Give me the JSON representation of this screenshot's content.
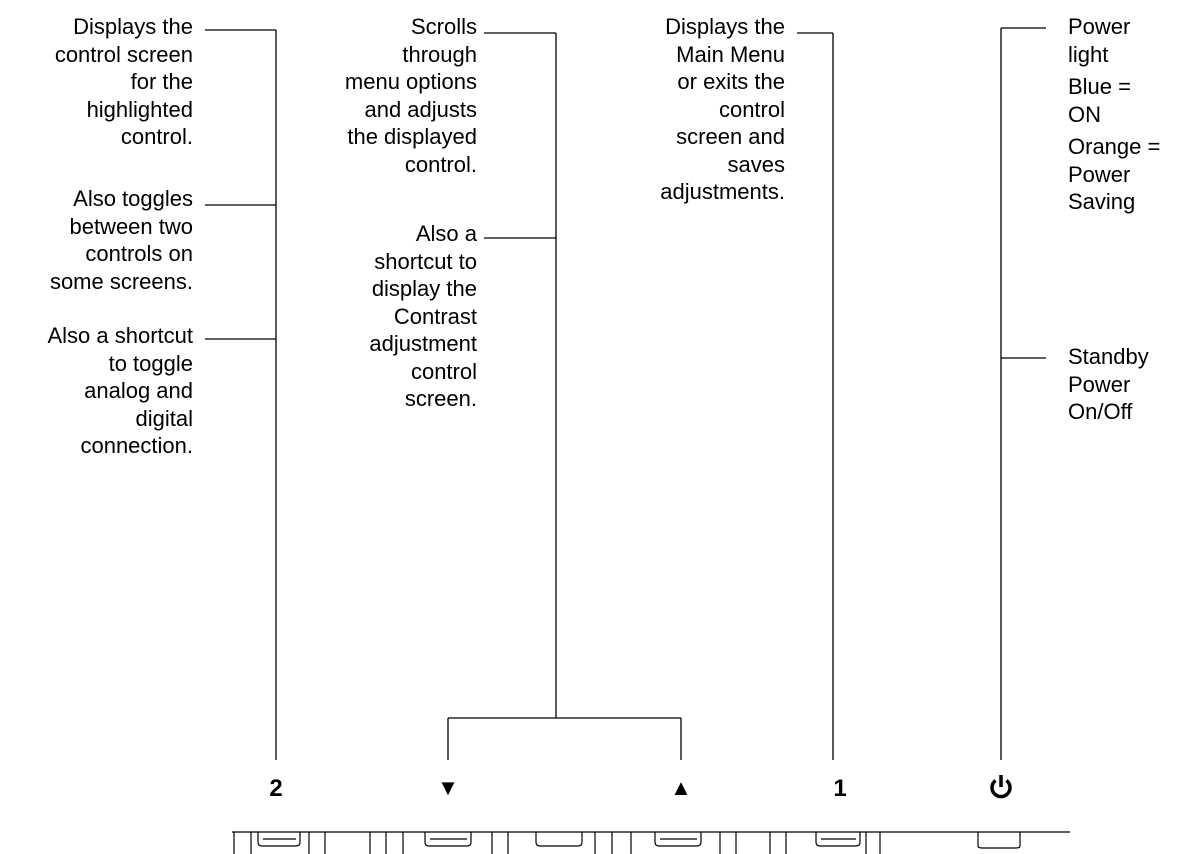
{
  "col2": {
    "block1": [
      "Displays the",
      "control screen",
      "for the",
      "highlighted",
      "control."
    ],
    "block2": [
      "Also toggles",
      "between two",
      "controls on",
      "some screens."
    ],
    "block3": [
      "Also a shortcut",
      "to toggle",
      "analog and",
      "digital",
      "connection."
    ]
  },
  "colArrows": {
    "block1": [
      "Scrolls",
      "through",
      "menu options",
      "and adjusts",
      "the displayed",
      "control."
    ],
    "block2": [
      "Also a",
      "shortcut to",
      "display the",
      "Contrast",
      "adjustment",
      "control",
      "screen."
    ]
  },
  "col1": {
    "block1": [
      "Displays the",
      "Main Menu",
      "or exits the",
      "control",
      "screen and",
      "saves",
      "adjustments."
    ]
  },
  "colPower": {
    "block1": [
      "Power",
      "light",
      "Blue =",
      "ON",
      "Orange =",
      "Power",
      "Saving"
    ],
    "block2": [
      "Standby",
      "Power",
      "On/Off"
    ]
  },
  "buttons": {
    "two": "2",
    "down": "▼",
    "up": "▲",
    "one": "1",
    "power": "⏻"
  }
}
